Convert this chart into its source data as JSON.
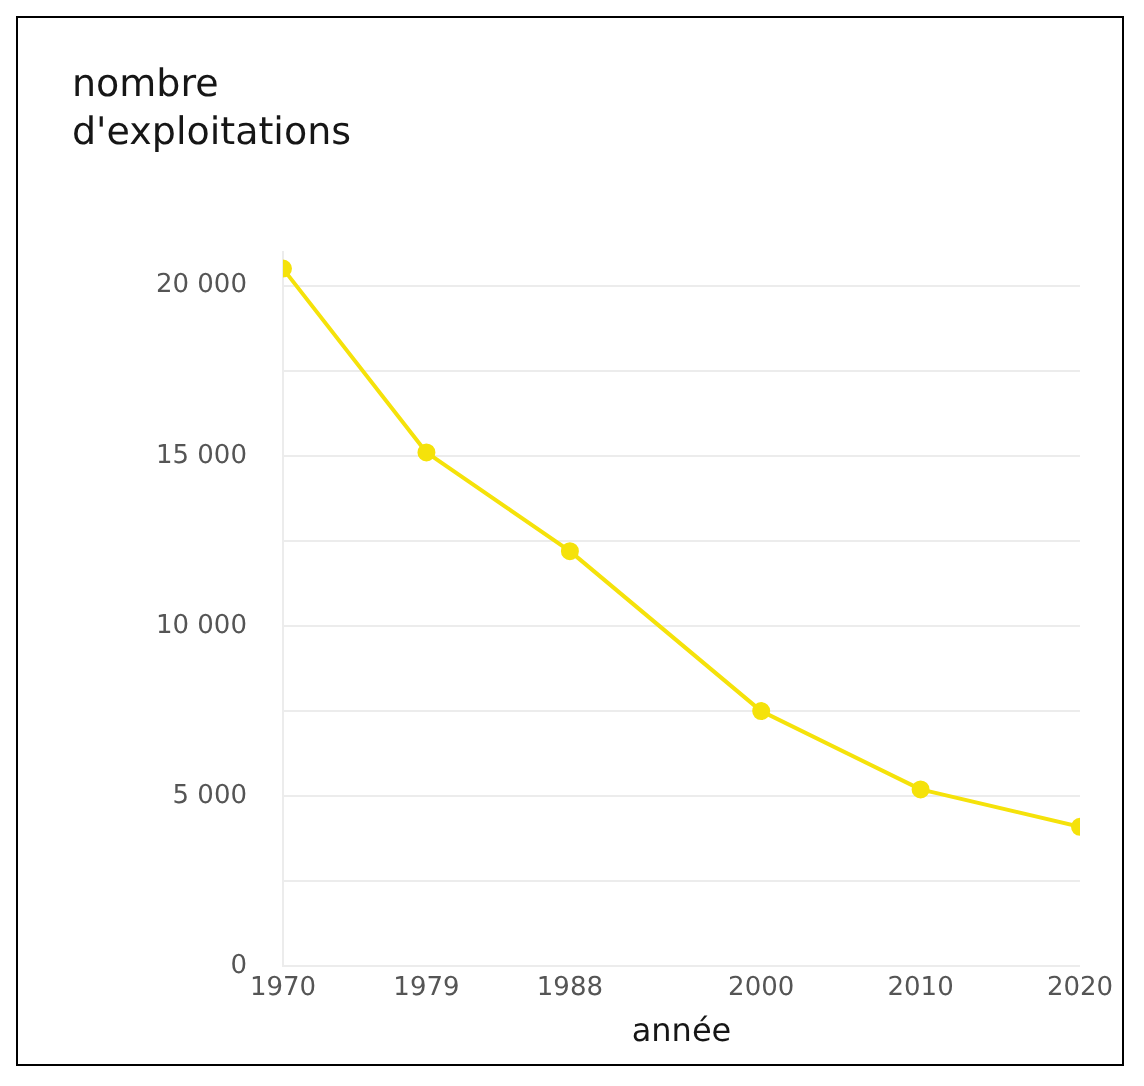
{
  "chart_data": {
    "type": "line",
    "ylabel": "nombre d'exploitations",
    "xlabel": "année",
    "x": [
      1970,
      1979,
      1988,
      2000,
      2010,
      2020
    ],
    "values": [
      20500,
      15100,
      12200,
      7500,
      5200,
      4100
    ],
    "color": "#f5e20a",
    "marker": "circle",
    "xlim": [
      1970,
      2020
    ],
    "xticks": [
      1970,
      1979,
      1988,
      2000,
      2010,
      2020
    ],
    "ylim": [
      0,
      21000
    ],
    "yticks": [
      {
        "value": 0,
        "label": "0"
      },
      {
        "value": 2500,
        "label": null
      },
      {
        "value": 5000,
        "label": "5 000"
      },
      {
        "value": 7500,
        "label": null
      },
      {
        "value": 10000,
        "label": "10 000"
      },
      {
        "value": 12500,
        "label": null
      },
      {
        "value": 15000,
        "label": "15 000"
      },
      {
        "value": 17500,
        "label": null
      },
      {
        "value": 20000,
        "label": "20 000"
      }
    ],
    "grid": "y"
  }
}
